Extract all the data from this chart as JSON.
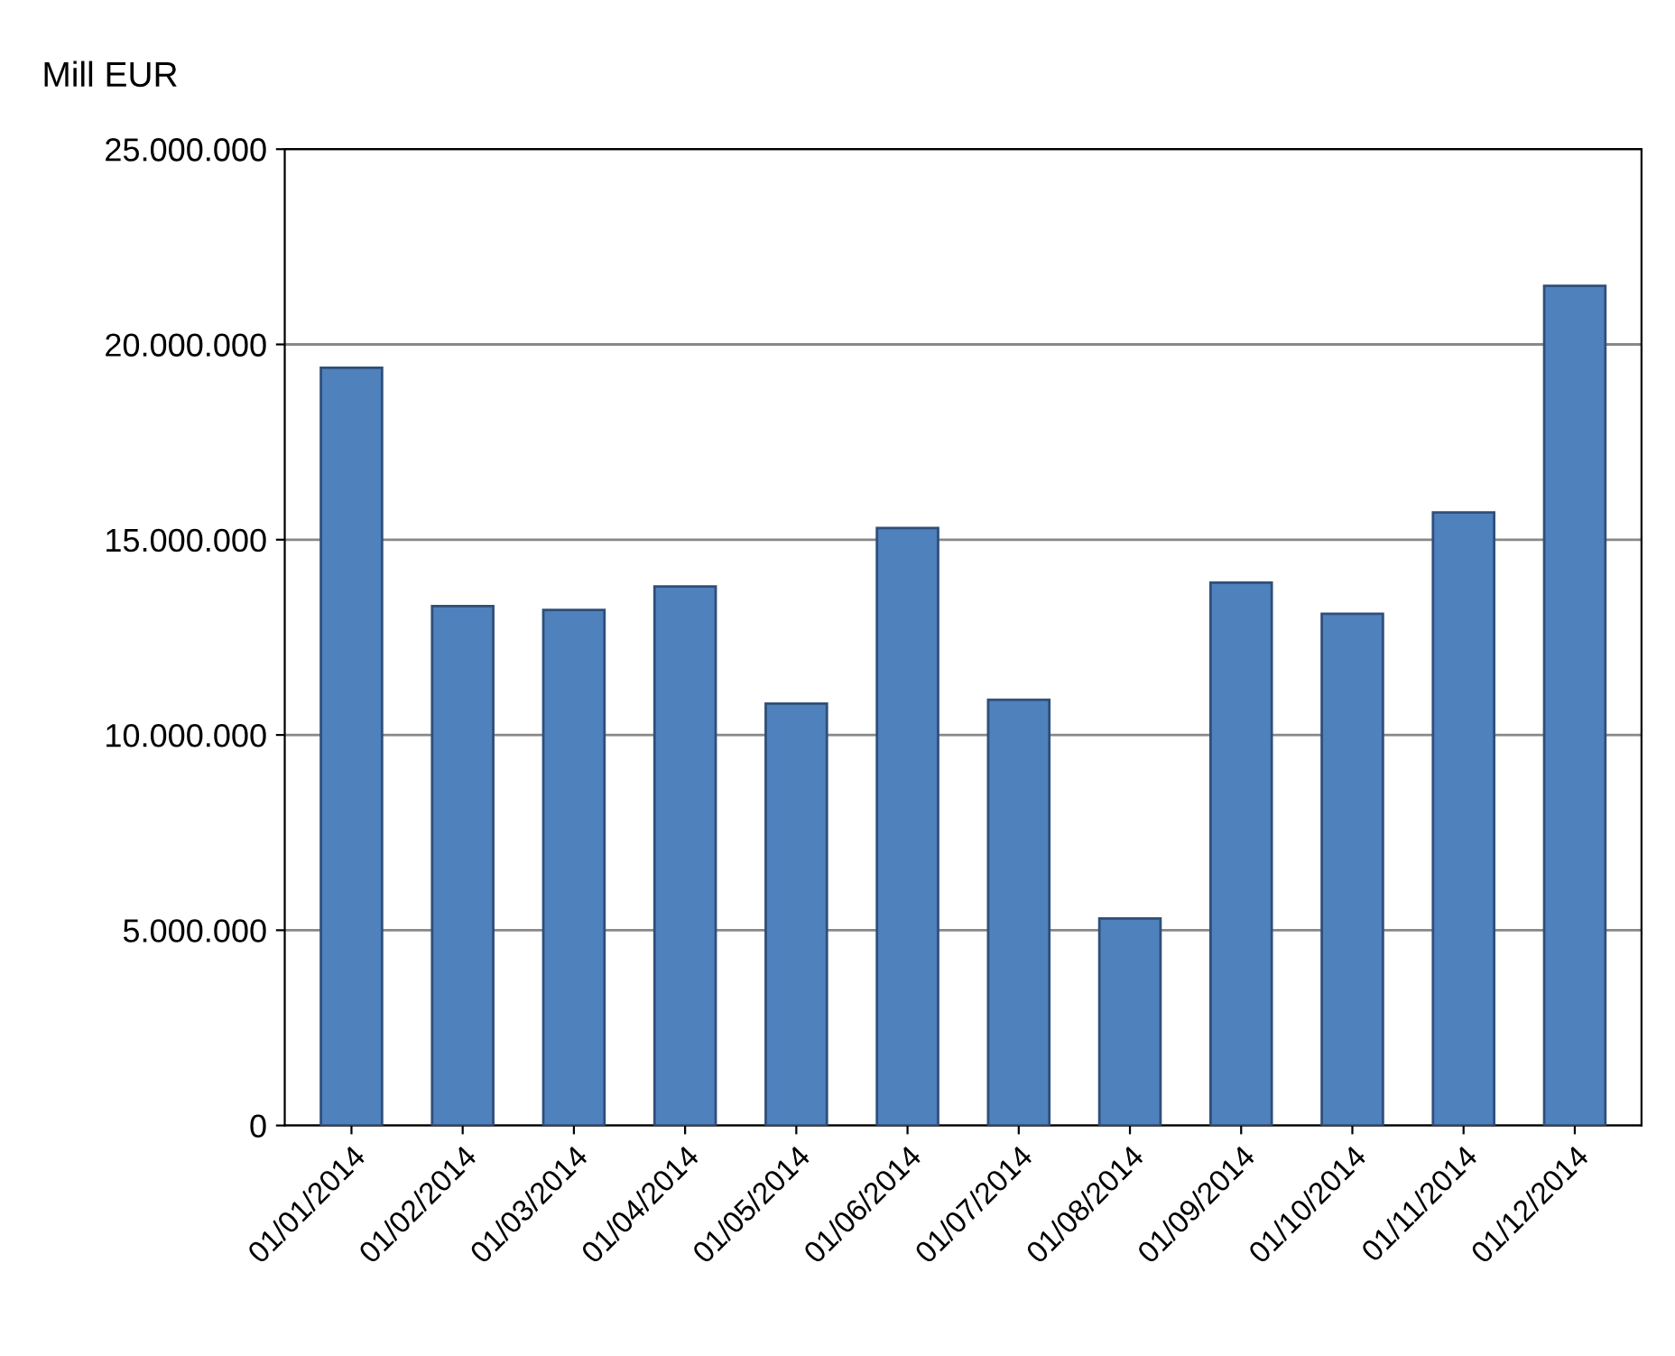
{
  "chart_data": {
    "type": "bar",
    "ylabel": "Mill EUR",
    "categories": [
      "01/01/2014",
      "01/02/2014",
      "01/03/2014",
      "01/04/2014",
      "01/05/2014",
      "01/06/2014",
      "01/07/2014",
      "01/08/2014",
      "01/09/2014",
      "01/10/2014",
      "01/11/2014",
      "01/12/2014"
    ],
    "series": [
      {
        "color": "#4f81bd",
        "values": [
          19400000,
          13300000,
          13200000,
          13800000,
          10800000,
          15300000,
          10900000,
          5300000,
          13900000,
          13100000,
          15700000,
          21500000
        ]
      }
    ],
    "ylim": [
      0,
      25000000
    ],
    "yticks": [
      {
        "value": 0,
        "label": "0"
      },
      {
        "value": 5000000,
        "label": "5.000.000"
      },
      {
        "value": 10000000,
        "label": "10.000.000"
      },
      {
        "value": 15000000,
        "label": "15.000.000"
      },
      {
        "value": 20000000,
        "label": "20.000.000"
      },
      {
        "value": 25000000,
        "label": "25.000.000"
      }
    ],
    "grid": "y"
  }
}
